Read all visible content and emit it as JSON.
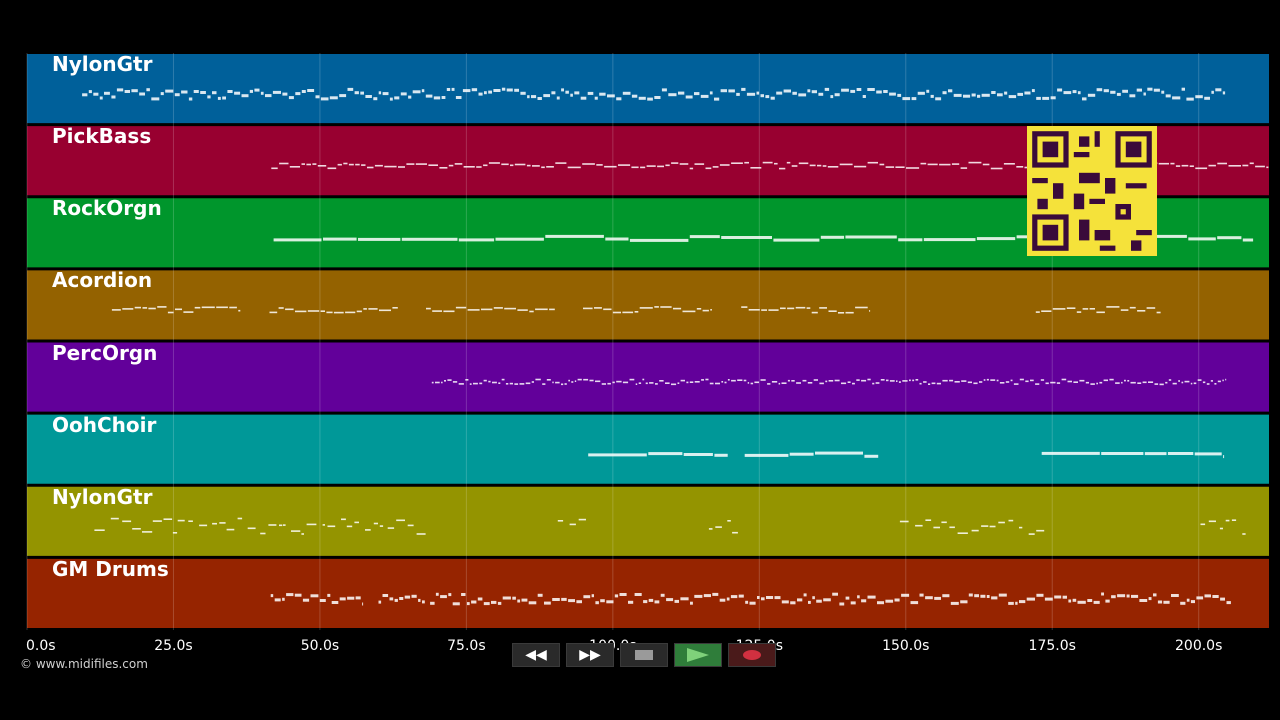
{
  "chart_data": {
    "type": "piano-roll",
    "x_unit": "s",
    "xlim": [
      0,
      212
    ],
    "ticks": [
      {
        "value": 0,
        "label": "0.0s"
      },
      {
        "value": 25,
        "label": "25.0s"
      },
      {
        "value": 50,
        "label": "50.0s"
      },
      {
        "value": 75,
        "label": "75.0s"
      },
      {
        "value": 100,
        "label": "100.0s"
      },
      {
        "value": 125,
        "label": "125.0s"
      },
      {
        "value": 150,
        "label": "150.0s"
      },
      {
        "value": 175,
        "label": "175.0s"
      },
      {
        "value": 200,
        "label": "200.0s"
      }
    ],
    "grid": true,
    "tracks": [
      {
        "name": "NylonGtr",
        "color": "#00609a",
        "segments": [
          [
            9.4,
            204.6
          ]
        ],
        "style": "dense"
      },
      {
        "name": "PickBass",
        "color": "#980030",
        "segments": [
          [
            41.7,
            212
          ]
        ],
        "style": "sparse"
      },
      {
        "name": "RockOrgn",
        "color": "#00962c",
        "segments": [
          [
            42.1,
            209.4
          ]
        ],
        "style": "long"
      },
      {
        "name": "Acordion",
        "color": "#946200",
        "segments": [
          [
            14.5,
            36.5
          ],
          [
            41.4,
            63.4
          ],
          [
            68.1,
            90.2
          ],
          [
            94.9,
            117.0
          ],
          [
            121.9,
            143.9
          ],
          [
            172.2,
            193.6
          ]
        ],
        "style": "sparse"
      },
      {
        "name": "PercOrgn",
        "color": "#62009a",
        "segments": [
          [
            69.1,
            204.8
          ]
        ],
        "style": "busy"
      },
      {
        "name": "OohChoir",
        "color": "#009898",
        "segments": [
          [
            95.8,
            119.7
          ],
          [
            122.5,
            145.4
          ],
          [
            173.2,
            204.4
          ]
        ],
        "style": "long"
      },
      {
        "name": "NylonGtr",
        "color": "#949400",
        "segments": [
          [
            11.5,
            68.6
          ],
          [
            90.6,
            95.8
          ],
          [
            116.4,
            122.0
          ],
          [
            149.0,
            174.4
          ],
          [
            200.3,
            208.1
          ]
        ],
        "style": "scatter"
      },
      {
        "name": "GM Drums",
        "color": "#962400",
        "segments": [
          [
            41.6,
            57.3
          ],
          [
            60.0,
            68.0
          ],
          [
            68.8,
            205.6
          ]
        ],
        "style": "dense"
      }
    ]
  },
  "transport": {
    "rewind_icon": "rewind-icon",
    "forward_icon": "fast-forward-icon",
    "stop_icon": "stop-icon",
    "play_icon": "play-icon",
    "record_icon": "record-icon"
  },
  "footer": {
    "copyright": "© www.midifiles.com"
  }
}
